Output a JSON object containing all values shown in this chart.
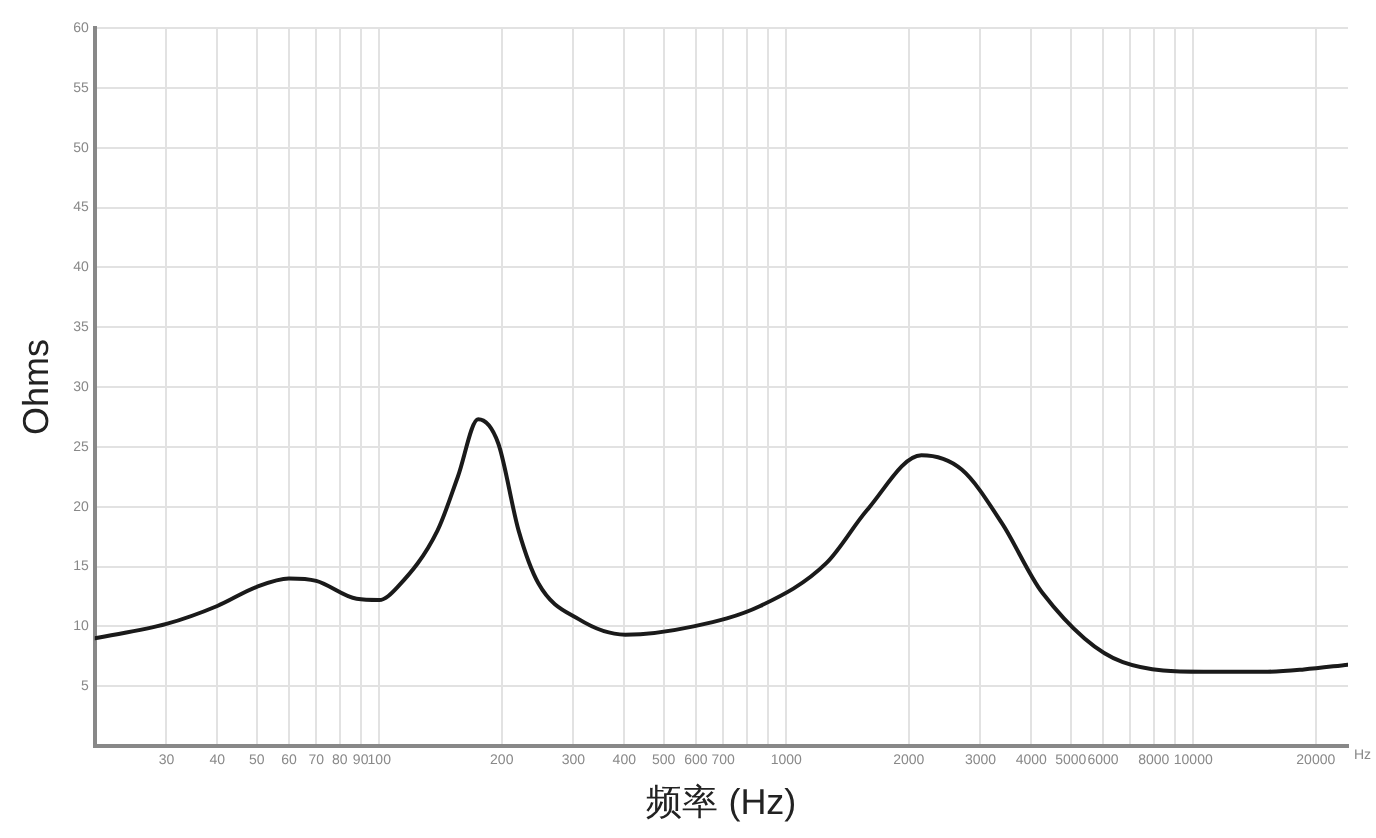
{
  "chart_data": {
    "type": "line",
    "xlabel": "频率 (Hz)",
    "ylabel": "Ohms",
    "log": "x",
    "grid": true,
    "legend": false,
    "marker": "none",
    "line_style": "solid",
    "xlim": [
      20,
      24000
    ],
    "ylim": [
      0,
      60
    ],
    "xticks": [
      30,
      40,
      50,
      60,
      70,
      80,
      90,
      100,
      200,
      300,
      400,
      500,
      600,
      700,
      {
        "value": 800,
        "label": null
      },
      {
        "value": 900,
        "label": null
      },
      1000,
      2000,
      3000,
      4000,
      5000,
      6000,
      {
        "value": 7000,
        "label": null
      },
      8000,
      {
        "value": 9000,
        "label": null
      },
      10000,
      20000
    ],
    "yticks": [
      5,
      10,
      15,
      20,
      25,
      30,
      35,
      40,
      45,
      50,
      55,
      60
    ],
    "annotations": [
      "Hz"
    ],
    "x": [
      20,
      30,
      40,
      50,
      60,
      70,
      88,
      100,
      111,
      139,
      156,
      175,
      196,
      220,
      246,
      309,
      402,
      592,
      863,
      1256,
      1578,
      2148,
      2698,
      3390,
      4258,
      6714,
      10600,
      14900,
      18700,
      24000
    ],
    "series": [
      {
        "color": "#1a1a1a",
        "values": [
          9.0,
          10.2,
          11.7,
          13.3,
          14.0,
          13.8,
          12.3,
          12.2,
          13.3,
          18.0,
          22.5,
          27.3,
          25.3,
          18.0,
          13.6,
          10.6,
          9.3,
          10.0,
          11.7,
          15.3,
          19.7,
          24.3,
          23.1,
          18.6,
          12.8,
          7.0,
          6.2,
          6.2,
          6.4,
          6.8
        ]
      }
    ]
  }
}
